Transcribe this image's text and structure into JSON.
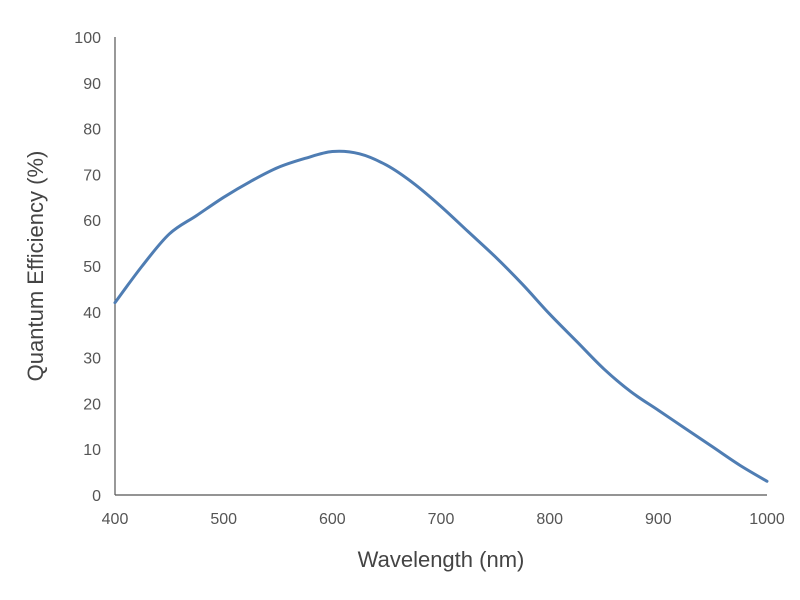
{
  "chart_data": {
    "type": "line",
    "title": "",
    "xlabel": "Wavelength (nm)",
    "ylabel": "Quantum Efficiency (%)",
    "xlim": [
      400,
      1000
    ],
    "ylim": [
      0,
      100
    ],
    "x_ticks": [
      400,
      500,
      600,
      700,
      800,
      900,
      1000
    ],
    "y_ticks": [
      0,
      10,
      20,
      30,
      40,
      50,
      60,
      70,
      80,
      90,
      100
    ],
    "grid": false,
    "legend": "none",
    "series": [
      {
        "color": "#4f7db3",
        "points": [
          {
            "x": 400,
            "y": 42
          },
          {
            "x": 425,
            "y": 50
          },
          {
            "x": 450,
            "y": 57
          },
          {
            "x": 475,
            "y": 61
          },
          {
            "x": 500,
            "y": 65
          },
          {
            "x": 525,
            "y": 68.5
          },
          {
            "x": 550,
            "y": 71.5
          },
          {
            "x": 575,
            "y": 73.5
          },
          {
            "x": 600,
            "y": 75
          },
          {
            "x": 625,
            "y": 74.5
          },
          {
            "x": 650,
            "y": 72
          },
          {
            "x": 675,
            "y": 68
          },
          {
            "x": 700,
            "y": 63
          },
          {
            "x": 725,
            "y": 57.5
          },
          {
            "x": 750,
            "y": 52
          },
          {
            "x": 775,
            "y": 46
          },
          {
            "x": 800,
            "y": 39.5
          },
          {
            "x": 825,
            "y": 33.5
          },
          {
            "x": 850,
            "y": 27.5
          },
          {
            "x": 875,
            "y": 22.5
          },
          {
            "x": 900,
            "y": 18.5
          },
          {
            "x": 925,
            "y": 14.5
          },
          {
            "x": 950,
            "y": 10.5
          },
          {
            "x": 975,
            "y": 6.5
          },
          {
            "x": 1000,
            "y": 3
          }
        ]
      }
    ]
  },
  "style": {
    "line_color": "#4f7db3",
    "axis_color": "#555555"
  }
}
